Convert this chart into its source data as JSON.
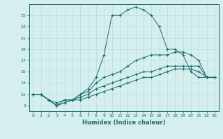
{
  "title": "",
  "xlabel": "Humidex (Indice chaleur)",
  "ylabel": "",
  "bg_color": "#d5efef",
  "line_color": "#1a6b6b",
  "x_ticks": [
    0,
    1,
    2,
    3,
    4,
    5,
    6,
    7,
    8,
    9,
    10,
    11,
    12,
    13,
    14,
    15,
    16,
    17,
    18,
    19,
    20,
    21,
    22,
    23
  ],
  "y_ticks": [
    9,
    11,
    13,
    15,
    17,
    19,
    21,
    23,
    25
  ],
  "xlim": [
    -0.5,
    23.5
  ],
  "ylim": [
    8.0,
    27.0
  ],
  "line1_x": [
    0,
    1,
    2,
    3,
    4,
    5,
    6,
    7,
    8,
    9,
    10,
    11,
    12,
    13,
    14,
    15,
    16,
    17,
    18,
    19,
    20,
    21,
    22,
    23
  ],
  "line1_y": [
    11,
    11,
    10,
    9,
    10,
    10,
    11,
    12,
    14,
    18,
    25,
    25,
    26,
    26.5,
    26,
    25,
    23,
    19,
    19,
    18,
    15,
    14,
    14,
    14
  ],
  "line2_x": [
    0,
    1,
    2,
    3,
    4,
    5,
    6,
    7,
    8,
    9,
    10,
    11,
    12,
    13,
    14,
    15,
    16,
    17,
    18,
    19,
    20,
    21,
    22,
    23
  ],
  "line2_y": [
    11,
    11,
    10,
    9.5,
    10,
    10,
    11,
    11.5,
    13,
    14,
    14.5,
    15,
    16,
    17,
    17.5,
    18,
    18,
    18,
    18.5,
    18.5,
    18,
    17,
    14,
    14
  ],
  "line3_x": [
    0,
    1,
    2,
    3,
    4,
    5,
    6,
    7,
    8,
    9,
    10,
    11,
    12,
    13,
    14,
    15,
    16,
    17,
    18,
    19,
    20,
    21,
    22,
    23
  ],
  "line3_y": [
    11,
    11,
    10,
    9,
    9.5,
    10,
    10.5,
    11,
    12,
    12.5,
    13,
    13.5,
    14,
    14.5,
    15,
    15,
    15.5,
    16,
    16,
    16,
    16,
    16,
    14,
    14
  ],
  "line4_x": [
    0,
    1,
    2,
    3,
    4,
    5,
    6,
    7,
    8,
    9,
    10,
    11,
    12,
    13,
    14,
    15,
    16,
    17,
    18,
    19,
    20,
    21,
    22,
    23
  ],
  "line4_y": [
    11,
    11,
    10,
    9,
    9.5,
    10,
    10,
    10.5,
    11,
    11.5,
    12,
    12.5,
    13,
    13.5,
    14,
    14,
    14.5,
    15,
    15.5,
    15.5,
    15.5,
    15,
    14,
    14
  ]
}
